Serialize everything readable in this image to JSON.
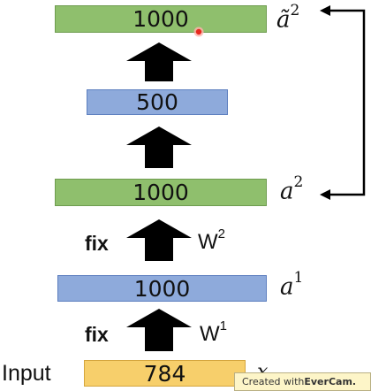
{
  "layers": {
    "output": {
      "value": "1000",
      "symbol": "ã",
      "sup": "2"
    },
    "hidden_mid": {
      "value": "500"
    },
    "hidden2": {
      "value": "1000",
      "symbol": "a",
      "sup": "2"
    },
    "hidden1": {
      "value": "1000",
      "symbol": "a",
      "sup": "1"
    },
    "input": {
      "value": "784",
      "label": "Input",
      "symbol": "x"
    }
  },
  "weights": {
    "upper": {
      "prefix": "fix",
      "name": "W",
      "sup": "2"
    },
    "lower": {
      "prefix": "fix",
      "name": "W",
      "sup": "1"
    }
  },
  "watermark": {
    "prefix": "Created with ",
    "brand": "EverCam."
  },
  "colors": {
    "green": "#8fbf6d",
    "blue": "#8eaadb",
    "yellow": "#f7cf6b",
    "arrow": "#000000",
    "cursor": "#e8281e"
  }
}
